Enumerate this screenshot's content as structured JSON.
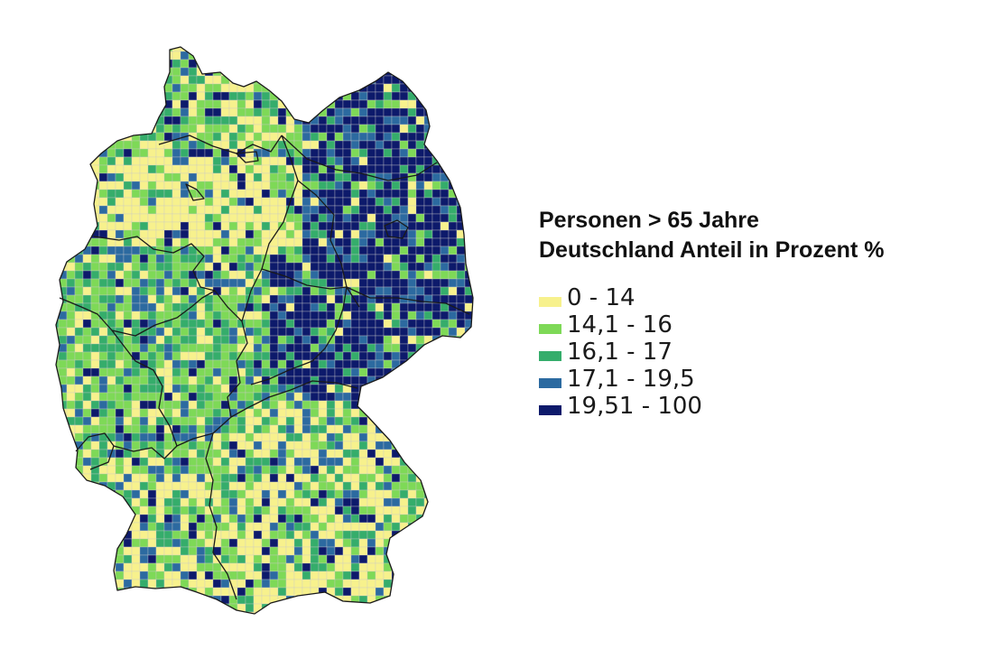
{
  "map": {
    "title_line1": "Personen > 65 Jahre",
    "title_line2": "Deutschland Anteil in Prozent %",
    "legend": [
      {
        "label": "0 - 14",
        "color": "#f7f18d"
      },
      {
        "label": "14,1 - 16",
        "color": "#7ed957"
      },
      {
        "label": "16,1 - 17",
        "color": "#35ad6b"
      },
      {
        "label": "17,1 - 19,5",
        "color": "#2c6aa0"
      },
      {
        "label": "19,51 - 100",
        "color": "#0d1a6b"
      }
    ],
    "boundary_color": "#1a1a1a"
  }
}
